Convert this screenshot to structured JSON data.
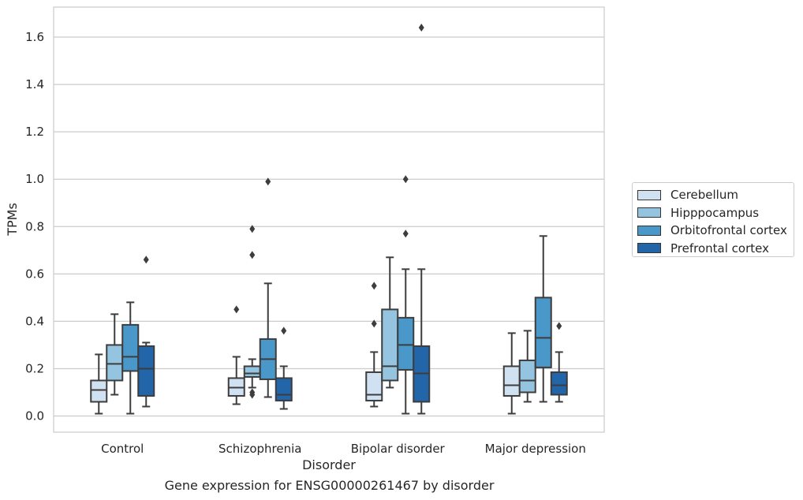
{
  "chart_data": {
    "type": "box",
    "xlabel": "Disorder",
    "ylabel": "TPMs",
    "ylim": [
      -0.065,
      1.73
    ],
    "yticks": [
      "0.0",
      "0.2",
      "0.4",
      "0.6",
      "0.8",
      "1.0",
      "1.2",
      "1.4",
      "1.6"
    ],
    "grid": true,
    "legend_position": "right",
    "caption": "Gene expression for ENSG00000261467 by disorder",
    "categories": [
      "Control",
      "Schizophrenia",
      "Bipolar disorder",
      "Major depression"
    ],
    "series": [
      {
        "name": "Cerebellum",
        "color": "#d0e1f2",
        "boxes": [
          {
            "min": 0.01,
            "q1": 0.06,
            "median": 0.11,
            "q3": 0.15,
            "max": 0.26,
            "outliers": []
          },
          {
            "min": 0.05,
            "q1": 0.085,
            "median": 0.12,
            "q3": 0.16,
            "max": 0.25,
            "outliers": [
              0.45
            ]
          },
          {
            "min": 0.04,
            "q1": 0.065,
            "median": 0.09,
            "q3": 0.185,
            "max": 0.27,
            "outliers": [
              0.39,
              0.55
            ]
          },
          {
            "min": 0.01,
            "q1": 0.085,
            "median": 0.13,
            "q3": 0.21,
            "max": 0.35,
            "outliers": []
          }
        ]
      },
      {
        "name": "Hipppocampus",
        "color": "#94c4df",
        "boxes": [
          {
            "min": 0.09,
            "q1": 0.15,
            "median": 0.22,
            "q3": 0.3,
            "max": 0.43,
            "outliers": []
          },
          {
            "min": 0.12,
            "q1": 0.165,
            "median": 0.18,
            "q3": 0.21,
            "max": 0.24,
            "outliers": [
              0.09,
              0.1,
              0.68,
              0.79
            ]
          },
          {
            "min": 0.12,
            "q1": 0.15,
            "median": 0.21,
            "q3": 0.45,
            "max": 0.67,
            "outliers": []
          },
          {
            "min": 0.06,
            "q1": 0.1,
            "median": 0.15,
            "q3": 0.235,
            "max": 0.36,
            "outliers": []
          }
        ]
      },
      {
        "name": "Orbitofrontal cortex",
        "color": "#4a98c9",
        "boxes": [
          {
            "min": 0.01,
            "q1": 0.19,
            "median": 0.25,
            "q3": 0.385,
            "max": 0.48,
            "outliers": []
          },
          {
            "min": 0.08,
            "q1": 0.155,
            "median": 0.24,
            "q3": 0.325,
            "max": 0.56,
            "outliers": [
              0.99
            ]
          },
          {
            "min": 0.01,
            "q1": 0.195,
            "median": 0.3,
            "q3": 0.415,
            "max": 0.62,
            "outliers": [
              0.77,
              1.0
            ]
          },
          {
            "min": 0.06,
            "q1": 0.205,
            "median": 0.33,
            "q3": 0.5,
            "max": 0.76,
            "outliers": []
          }
        ]
      },
      {
        "name": "Prefrontal cortex",
        "color": "#2265a8",
        "boxes": [
          {
            "min": 0.04,
            "q1": 0.085,
            "median": 0.2,
            "q3": 0.295,
            "max": 0.31,
            "outliers": [
              0.66
            ]
          },
          {
            "min": 0.03,
            "q1": 0.065,
            "median": 0.09,
            "q3": 0.16,
            "max": 0.21,
            "outliers": [
              0.36
            ]
          },
          {
            "min": 0.01,
            "q1": 0.06,
            "median": 0.18,
            "q3": 0.295,
            "max": 0.62,
            "outliers": [
              1.64
            ]
          },
          {
            "min": 0.06,
            "q1": 0.09,
            "median": 0.13,
            "q3": 0.185,
            "max": 0.27,
            "outliers": [
              0.38
            ]
          }
        ]
      }
    ]
  }
}
